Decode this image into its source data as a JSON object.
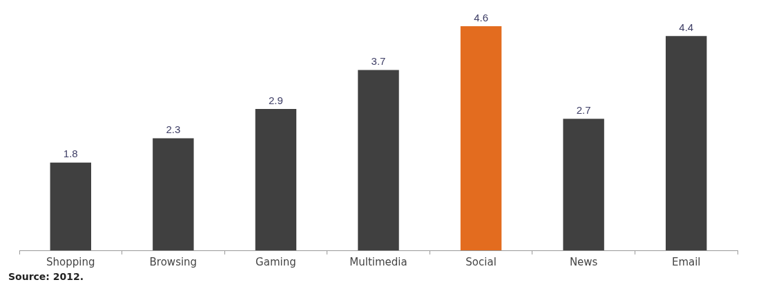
{
  "chart_data": {
    "type": "bar",
    "categories": [
      "Shopping",
      "Browsing",
      "Gaming",
      "Multimedia",
      "Social",
      "News",
      "Email"
    ],
    "values": [
      1.8,
      2.3,
      2.9,
      3.7,
      4.6,
      2.7,
      4.4
    ],
    "colors": [
      "#404040",
      "#404040",
      "#404040",
      "#404040",
      "#e36c1f",
      "#404040",
      "#404040"
    ],
    "data_labels": true,
    "grid": false,
    "legend": false,
    "annotations": [
      "Source: 2012."
    ]
  }
}
